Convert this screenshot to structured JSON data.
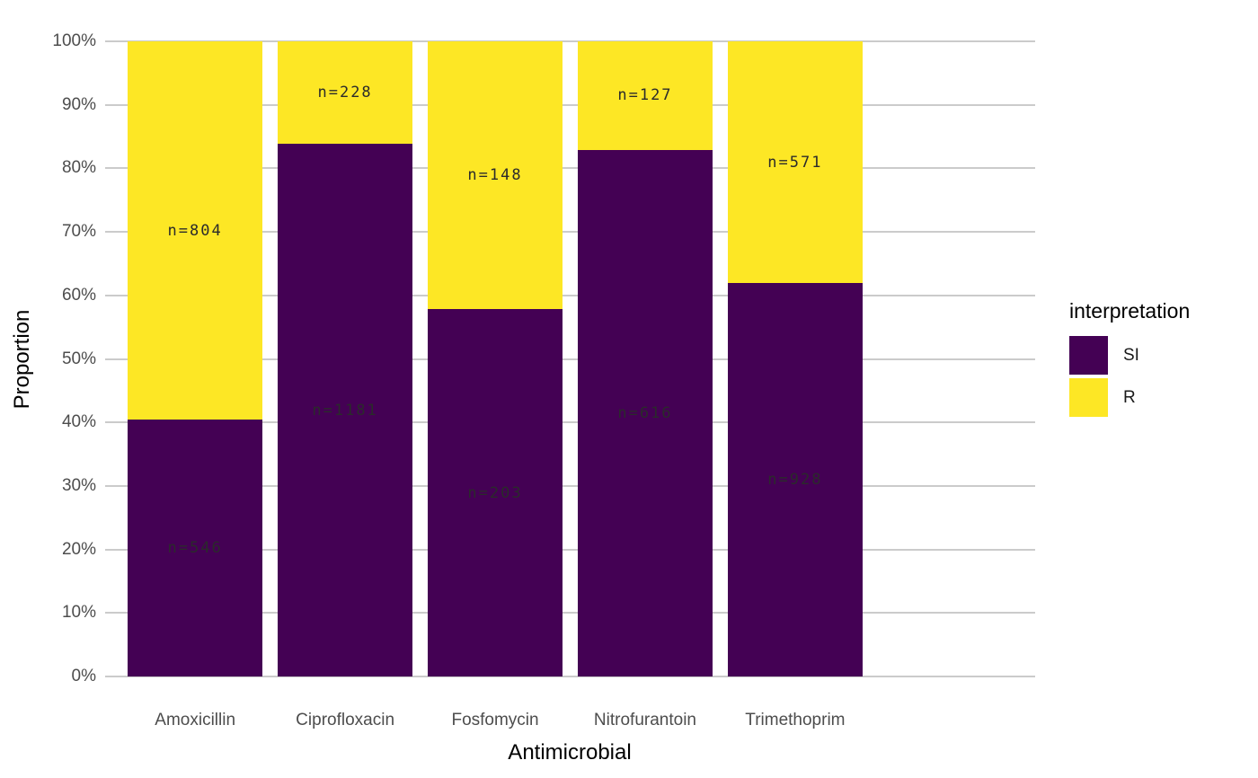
{
  "chart_data": {
    "type": "bar",
    "stacking": "percent",
    "title": "",
    "xlabel": "Antimicrobial",
    "ylabel": "Proportion",
    "categories": [
      "Amoxicillin",
      "Ciprofloxacin",
      "Fosfomycin",
      "Nitrofurantoin",
      "Trimethoprim"
    ],
    "series": [
      {
        "name": "SI",
        "color": "#440154",
        "counts": [
          546,
          1181,
          203,
          616,
          928
        ],
        "percents": [
          40.44,
          83.82,
          57.83,
          82.91,
          61.91
        ],
        "labels": [
          "n=546",
          "n=1181",
          "n=203",
          "n=616",
          "n=928"
        ]
      },
      {
        "name": "R",
        "color": "#FDE725",
        "counts": [
          804,
          228,
          148,
          127,
          571
        ],
        "percents": [
          59.56,
          16.18,
          42.17,
          17.09,
          38.09
        ],
        "labels": [
          "n=804",
          "n=228",
          "n=148",
          "n=127",
          "n=571"
        ]
      }
    ],
    "ylim": [
      0,
      100
    ],
    "y_ticks": [
      "0%",
      "10%",
      "20%",
      "30%",
      "40%",
      "50%",
      "60%",
      "70%",
      "80%",
      "90%",
      "100%"
    ],
    "grid": "horizontal-major",
    "legend": {
      "title": "interpretation",
      "position": "right",
      "entries": [
        "SI",
        "R"
      ]
    }
  },
  "colors": {
    "background": "#ffffff",
    "gridline": "#cbcbcb",
    "tick_label": "#4d4d4d",
    "axis_title": "#000000",
    "bar_label": "#2b2b2b"
  }
}
